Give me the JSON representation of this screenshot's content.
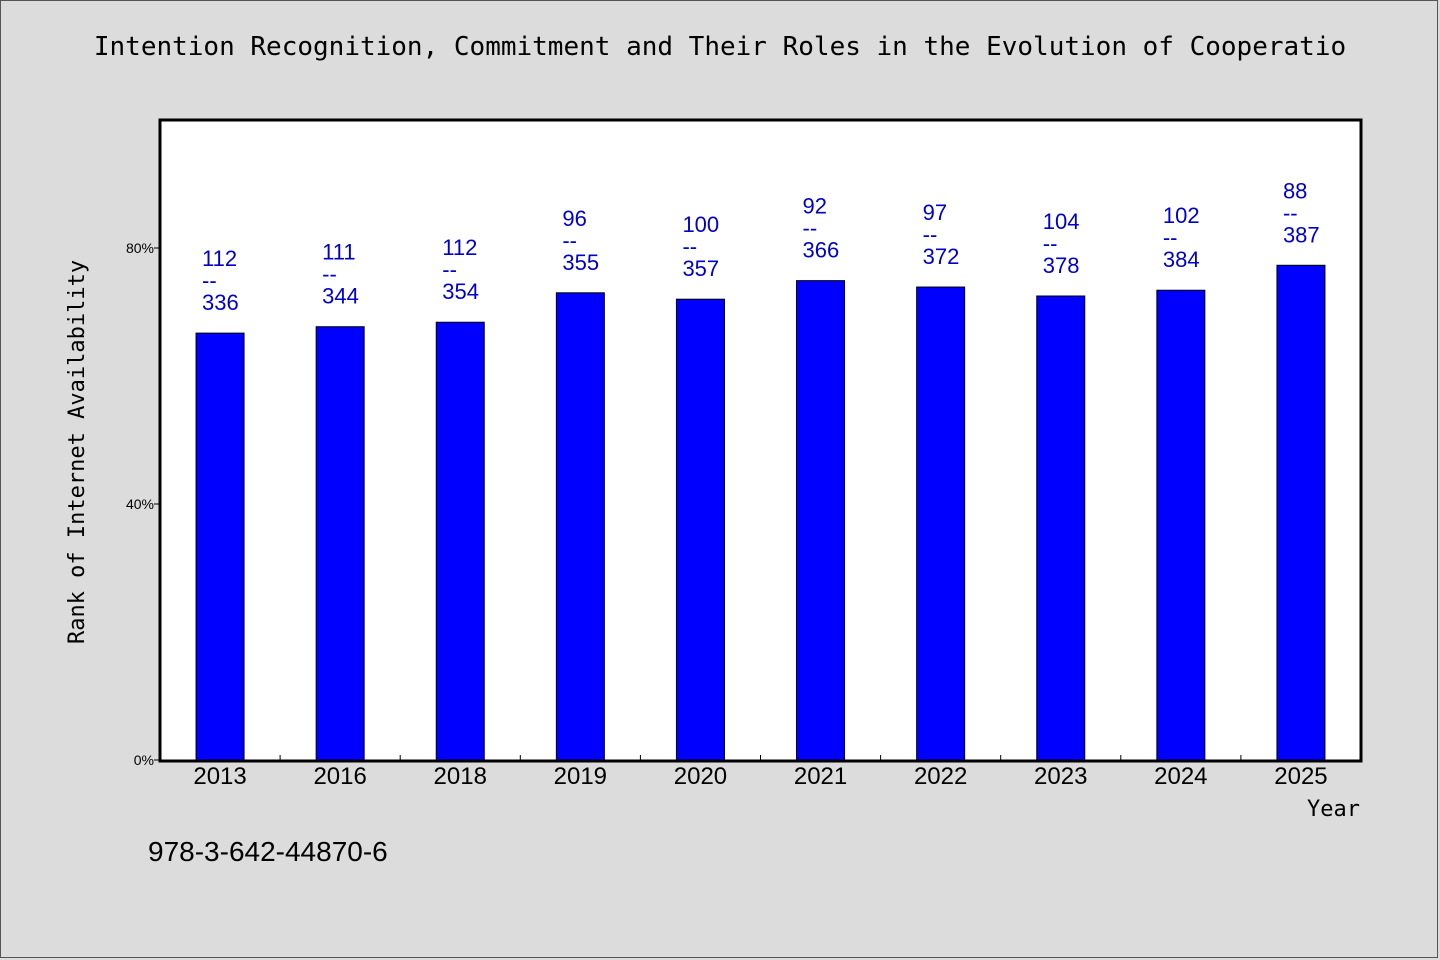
{
  "title": "Intention Recognition, Commitment and Their Roles in the Evolution of Cooperatio",
  "isbn": "978-3-642-44870-6",
  "colors": {
    "bar": "#0000ff",
    "bar_label": "#0000cc",
    "background": "#dcdcdc",
    "plot_bg": "#ffffff"
  },
  "chart_data": {
    "type": "bar",
    "xlabel": "Year",
    "ylabel": "Rank of Internet Availability",
    "ylim": [
      0,
      100
    ],
    "yticks": [
      0,
      40,
      80
    ],
    "ytick_labels": [
      "0%",
      "40%",
      "80%"
    ],
    "grid": false,
    "categories": [
      "2013",
      "2016",
      "2018",
      "2019",
      "2020",
      "2021",
      "2022",
      "2023",
      "2024",
      "2025"
    ],
    "values": [
      66.7,
      67.7,
      68.4,
      73.0,
      72.0,
      74.9,
      73.9,
      72.5,
      73.4,
      77.3
    ],
    "labels_top": [
      "112",
      "111",
      "112",
      "96",
      "100",
      "92",
      "97",
      "104",
      "102",
      "88"
    ],
    "labels_sep": "--",
    "labels_bottom": [
      "336",
      "344",
      "354",
      "355",
      "357",
      "366",
      "372",
      "378",
      "384",
      "387"
    ]
  }
}
